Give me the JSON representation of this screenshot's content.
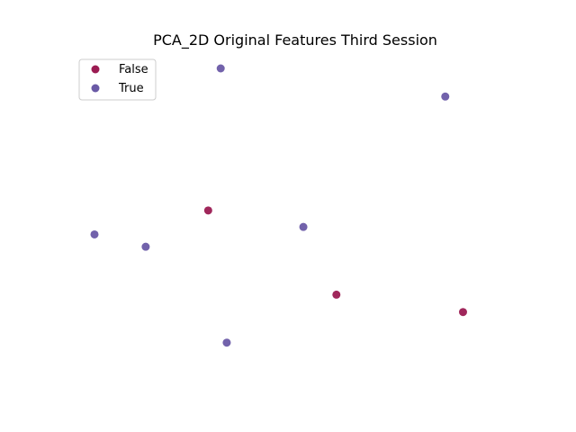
{
  "chart_data": {
    "type": "scatter",
    "title": "PCA_2D Original Features Third Session",
    "xlabel": "",
    "ylabel": "",
    "axes_visible": false,
    "grid": false,
    "xlim": [
      0,
      100
    ],
    "ylim": [
      0,
      100
    ],
    "legend_position": "top-left",
    "series": [
      {
        "name": "False",
        "color": "#9b1b52",
        "points": [
          {
            "x": 28.2,
            "y": 52.6
          },
          {
            "x": 60.0,
            "y": 24.5
          },
          {
            "x": 91.4,
            "y": 18.7
          }
        ]
      },
      {
        "name": "True",
        "color": "#6a5aa6",
        "points": [
          {
            "x": 31.3,
            "y": 100.0
          },
          {
            "x": 87.0,
            "y": 90.6
          },
          {
            "x": 51.8,
            "y": 47.1
          },
          {
            "x": 0.0,
            "y": 44.6
          },
          {
            "x": 12.7,
            "y": 40.5
          },
          {
            "x": 32.8,
            "y": 8.5
          }
        ]
      }
    ]
  }
}
